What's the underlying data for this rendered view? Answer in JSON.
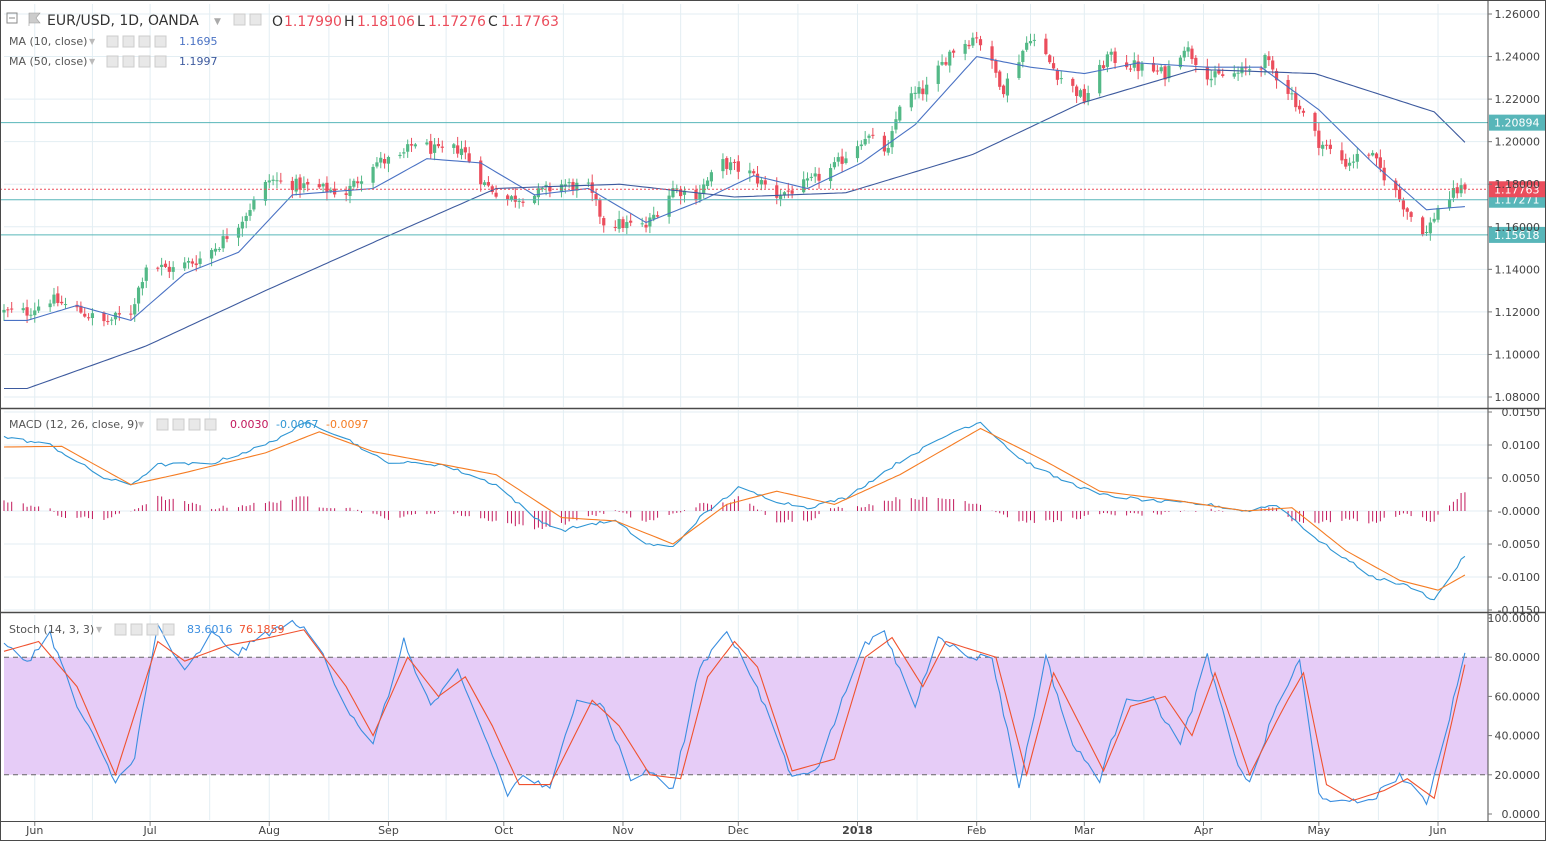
{
  "header": {
    "symbol": "EUR/USD, 1D, OANDA",
    "o_label": "O",
    "o_value": "1.17990",
    "h_label": "H",
    "h_value": "1.18106",
    "l_label": "L",
    "l_value": "1.17276",
    "c_label": "C",
    "c_value": "1.17763"
  },
  "indicators": {
    "ma10": {
      "label": "MA (10, close)",
      "value": "1.1695"
    },
    "ma50": {
      "label": "MA (50, close)",
      "value": "1.1997"
    },
    "macd": {
      "label": "MACD (12, 26, close, 9)",
      "hist": "0.0030",
      "macd": "-0.0067",
      "signal": "-0.0097"
    },
    "stoch": {
      "label": "Stoch (14, 3, 3)",
      "k": "83.6016",
      "d": "76.1859"
    }
  },
  "colors": {
    "bull": "#53b987",
    "bear": "#eb4d5c",
    "ma10": "#4a72c4",
    "ma50": "#3d5a9e",
    "hline": "#58b6b9",
    "macd_line": "#2f96d4",
    "signal_line": "#f57c23",
    "hist": "#c2185b",
    "stoch_k": "#3b8ee0",
    "stoch_d": "#f0522f",
    "stoch_band": "#e6ccf7"
  },
  "chart_data": {
    "type": "candlestick",
    "price": {
      "ylim": [
        1.07,
        1.262
      ],
      "ticks": [
        "1.26000",
        "1.24000",
        "1.22000",
        "1.20000",
        "1.18000",
        "1.16000",
        "1.14000",
        "1.12000",
        "1.10000",
        "1.08000"
      ],
      "hlines": [
        1.20894,
        1.17271,
        1.15618
      ],
      "hline_labels": [
        "1.20894",
        "1.17271",
        "1.15618"
      ],
      "last_price": 1.17763,
      "last_label": "1.17763",
      "anchors": [
        [
          "2017-05-30",
          1.12
        ],
        [
          "2017-06-05",
          1.126
        ],
        [
          "2017-06-12",
          1.121
        ],
        [
          "2017-06-19",
          1.115
        ],
        [
          "2017-06-26",
          1.12
        ],
        [
          "2017-06-30",
          1.142
        ],
        [
          "2017-07-07",
          1.14
        ],
        [
          "2017-07-14",
          1.145
        ],
        [
          "2017-07-19",
          1.152
        ],
        [
          "2017-07-25",
          1.164
        ],
        [
          "2017-08-01",
          1.182
        ],
        [
          "2017-08-07",
          1.18
        ],
        [
          "2017-08-14",
          1.178
        ],
        [
          "2017-08-21",
          1.176
        ],
        [
          "2017-08-28",
          1.19
        ],
        [
          "2017-09-04",
          1.192
        ],
        [
          "2017-09-08",
          1.2
        ],
        [
          "2017-09-14",
          1.195
        ],
        [
          "2017-09-20",
          1.197
        ],
        [
          "2017-09-26",
          1.18
        ],
        [
          "2017-10-02",
          1.173
        ],
        [
          "2017-10-09",
          1.175
        ],
        [
          "2017-10-16",
          1.18
        ],
        [
          "2017-10-23",
          1.178
        ],
        [
          "2017-10-27",
          1.162
        ],
        [
          "2017-11-07",
          1.16
        ],
        [
          "2017-11-14",
          1.178
        ],
        [
          "2017-11-20",
          1.175
        ],
        [
          "2017-11-27",
          1.19
        ],
        [
          "2017-12-04",
          1.185
        ],
        [
          "2017-12-11",
          1.175
        ],
        [
          "2017-12-19",
          1.18
        ],
        [
          "2017-12-26",
          1.188
        ],
        [
          "2018-01-03",
          1.203
        ],
        [
          "2018-01-09",
          1.195
        ],
        [
          "2018-01-12",
          1.218
        ],
        [
          "2018-01-19",
          1.225
        ],
        [
          "2018-01-25",
          1.242
        ],
        [
          "2018-02-01",
          1.25
        ],
        [
          "2018-02-08",
          1.225
        ],
        [
          "2018-02-15",
          1.25
        ],
        [
          "2018-02-22",
          1.232
        ],
        [
          "2018-03-01",
          1.22
        ],
        [
          "2018-03-07",
          1.24
        ],
        [
          "2018-03-15",
          1.235
        ],
        [
          "2018-03-22",
          1.232
        ],
        [
          "2018-03-27",
          1.245
        ],
        [
          "2018-04-03",
          1.23
        ],
        [
          "2018-04-10",
          1.232
        ],
        [
          "2018-04-17",
          1.238
        ],
        [
          "2018-04-24",
          1.222
        ],
        [
          "2018-05-01",
          1.2
        ],
        [
          "2018-05-08",
          1.19
        ],
        [
          "2018-05-14",
          1.195
        ],
        [
          "2018-05-21",
          1.176
        ],
        [
          "2018-05-25",
          1.165
        ],
        [
          "2018-05-29",
          1.157
        ],
        [
          "2018-06-01",
          1.169
        ],
        [
          "2018-06-06",
          1.177
        ],
        [
          "2018-06-08",
          1.1776
        ]
      ],
      "ma10_anchors": [
        [
          "2017-05-30",
          1.116
        ],
        [
          "2017-06-12",
          1.123
        ],
        [
          "2017-06-26",
          1.116
        ],
        [
          "2017-07-10",
          1.138
        ],
        [
          "2017-07-24",
          1.148
        ],
        [
          "2017-08-07",
          1.175
        ],
        [
          "2017-08-28",
          1.178
        ],
        [
          "2017-09-11",
          1.192
        ],
        [
          "2017-09-25",
          1.19
        ],
        [
          "2017-10-09",
          1.175
        ],
        [
          "2017-10-23",
          1.178
        ],
        [
          "2017-11-07",
          1.162
        ],
        [
          "2017-11-21",
          1.172
        ],
        [
          "2017-12-05",
          1.184
        ],
        [
          "2017-12-19",
          1.178
        ],
        [
          "2018-01-02",
          1.19
        ],
        [
          "2018-01-16",
          1.208
        ],
        [
          "2018-02-01",
          1.24
        ],
        [
          "2018-02-15",
          1.235
        ],
        [
          "2018-03-01",
          1.232
        ],
        [
          "2018-03-15",
          1.237
        ],
        [
          "2018-04-02",
          1.235
        ],
        [
          "2018-04-16",
          1.235
        ],
        [
          "2018-05-01",
          1.215
        ],
        [
          "2018-05-15",
          1.19
        ],
        [
          "2018-05-29",
          1.168
        ],
        [
          "2018-06-08",
          1.1695
        ]
      ],
      "ma50_anchors": [
        [
          "2017-05-30",
          1.084
        ],
        [
          "2017-06-30",
          1.104
        ],
        [
          "2017-07-31",
          1.13
        ],
        [
          "2017-08-31",
          1.155
        ],
        [
          "2017-09-29",
          1.178
        ],
        [
          "2017-10-31",
          1.18
        ],
        [
          "2017-11-30",
          1.174
        ],
        [
          "2017-12-29",
          1.176
        ],
        [
          "2018-01-31",
          1.194
        ],
        [
          "2018-02-28",
          1.218
        ],
        [
          "2018-03-30",
          1.234
        ],
        [
          "2018-04-30",
          1.232
        ],
        [
          "2018-05-31",
          1.214
        ],
        [
          "2018-06-08",
          1.1997
        ]
      ]
    },
    "x_axis": {
      "labels": [
        "Jun",
        "Jul",
        "Aug",
        "Sep",
        "Oct",
        "Nov",
        "Dec",
        "2018",
        "Feb",
        "Mar",
        "Apr",
        "May",
        "Jun"
      ],
      "dates": [
        "2017-06-01",
        "2017-07-01",
        "2017-08-01",
        "2017-09-01",
        "2017-10-01",
        "2017-11-01",
        "2017-12-01",
        "2018-01-01",
        "2018-02-01",
        "2018-03-01",
        "2018-04-01",
        "2018-05-01",
        "2018-06-01"
      ],
      "range": [
        "2017-05-24",
        "2018-06-14"
      ]
    },
    "macd": {
      "ylim": [
        -0.0155,
        0.0155
      ],
      "ticks": [
        "0.0150",
        "0.0100",
        "0.0050",
        "-0.0000",
        "-0.0050",
        "-0.0100",
        "-0.0150"
      ],
      "macd_anchors": [
        [
          "2017-05-24",
          0.0112
        ],
        [
          "2017-06-05",
          0.01
        ],
        [
          "2017-06-19",
          0.005
        ],
        [
          "2017-06-26",
          0.004
        ],
        [
          "2017-07-03",
          0.007
        ],
        [
          "2017-07-17",
          0.0072
        ],
        [
          "2017-07-31",
          0.01
        ],
        [
          "2017-08-11",
          0.0135
        ],
        [
          "2017-08-21",
          0.011
        ],
        [
          "2017-08-31",
          0.0075
        ],
        [
          "2017-09-15",
          0.007
        ],
        [
          "2017-09-29",
          0.004
        ],
        [
          "2017-10-09",
          -0.001
        ],
        [
          "2017-10-16",
          -0.003
        ],
        [
          "2017-10-23",
          -0.002
        ],
        [
          "2017-10-30",
          -0.0015
        ],
        [
          "2017-11-07",
          -0.005
        ],
        [
          "2017-11-14",
          -0.0055
        ],
        [
          "2017-11-21",
          -0.001
        ],
        [
          "2017-12-01",
          0.0035
        ],
        [
          "2017-12-11",
          0.0015
        ],
        [
          "2017-12-19",
          0.0005
        ],
        [
          "2017-12-29",
          0.002
        ],
        [
          "2018-01-12",
          0.0075
        ],
        [
          "2018-01-26",
          0.012
        ],
        [
          "2018-02-02",
          0.0135
        ],
        [
          "2018-02-12",
          0.008
        ],
        [
          "2018-02-22",
          0.005
        ],
        [
          "2018-03-05",
          0.0025
        ],
        [
          "2018-03-19",
          0.0015
        ],
        [
          "2018-04-02",
          0.001
        ],
        [
          "2018-04-12",
          0.0
        ],
        [
          "2018-04-20",
          0.001
        ],
        [
          "2018-05-01",
          -0.0045
        ],
        [
          "2018-05-15",
          -0.01
        ],
        [
          "2018-05-25",
          -0.0115
        ],
        [
          "2018-05-31",
          -0.0135
        ],
        [
          "2018-06-08",
          -0.0067
        ]
      ],
      "signal_anchors": [
        [
          "2017-05-24",
          0.0097
        ],
        [
          "2017-06-08",
          0.0098
        ],
        [
          "2017-06-26",
          0.004
        ],
        [
          "2017-07-10",
          0.0058
        ],
        [
          "2017-07-31",
          0.0088
        ],
        [
          "2017-08-14",
          0.012
        ],
        [
          "2017-08-28",
          0.009
        ],
        [
          "2017-09-11",
          0.0075
        ],
        [
          "2017-09-29",
          0.0055
        ],
        [
          "2017-10-16",
          -0.001
        ],
        [
          "2017-10-30",
          -0.0015
        ],
        [
          "2017-11-14",
          -0.005
        ],
        [
          "2017-11-28",
          0.001
        ],
        [
          "2017-12-11",
          0.003
        ],
        [
          "2017-12-26",
          0.001
        ],
        [
          "2018-01-12",
          0.0055
        ],
        [
          "2018-02-02",
          0.0125
        ],
        [
          "2018-02-19",
          0.0075
        ],
        [
          "2018-03-05",
          0.003
        ],
        [
          "2018-03-26",
          0.0015
        ],
        [
          "2018-04-12",
          0.0
        ],
        [
          "2018-04-24",
          0.0005
        ],
        [
          "2018-05-08",
          -0.006
        ],
        [
          "2018-05-22",
          -0.0105
        ],
        [
          "2018-06-01",
          -0.012
        ],
        [
          "2018-06-08",
          -0.0097
        ]
      ],
      "last_labels": {
        "hist": "0.0030",
        "macd": "-0.0067",
        "signal": "-0.0097"
      }
    },
    "stoch": {
      "ylim": [
        0,
        100
      ],
      "ticks": [
        "100.0000",
        "80.0000",
        "60.0000",
        "40.0000",
        "20.0000",
        "0.0000"
      ],
      "band": [
        20,
        80
      ],
      "k_anchors": [
        [
          "2017-05-24",
          86
        ],
        [
          "2017-05-30",
          78
        ],
        [
          "2017-06-05",
          92
        ],
        [
          "2017-06-12",
          55
        ],
        [
          "2017-06-16",
          40
        ],
        [
          "2017-06-22",
          16
        ],
        [
          "2017-06-27",
          30
        ],
        [
          "2017-07-03",
          96
        ],
        [
          "2017-07-10",
          72
        ],
        [
          "2017-07-17",
          92
        ],
        [
          "2017-07-24",
          82
        ],
        [
          "2017-07-31",
          92
        ],
        [
          "2017-08-08",
          98
        ],
        [
          "2017-08-14",
          85
        ],
        [
          "2017-08-21",
          55
        ],
        [
          "2017-08-28",
          35
        ],
        [
          "2017-09-05",
          88
        ],
        [
          "2017-09-12",
          55
        ],
        [
          "2017-09-19",
          72
        ],
        [
          "2017-09-26",
          40
        ],
        [
          "2017-10-02",
          10
        ],
        [
          "2017-10-06",
          20
        ],
        [
          "2017-10-13",
          12
        ],
        [
          "2017-10-20",
          60
        ],
        [
          "2017-10-27",
          55
        ],
        [
          "2017-11-03",
          18
        ],
        [
          "2017-11-08",
          22
        ],
        [
          "2017-11-14",
          12
        ],
        [
          "2017-11-21",
          75
        ],
        [
          "2017-11-28",
          94
        ],
        [
          "2017-12-04",
          72
        ],
        [
          "2017-12-11",
          40
        ],
        [
          "2017-12-15",
          18
        ],
        [
          "2017-12-22",
          25
        ],
        [
          "2018-01-02",
          85
        ],
        [
          "2018-01-08",
          92
        ],
        [
          "2018-01-16",
          55
        ],
        [
          "2018-01-22",
          92
        ],
        [
          "2018-01-29",
          80
        ],
        [
          "2018-02-05",
          80
        ],
        [
          "2018-02-12",
          14
        ],
        [
          "2018-02-19",
          80
        ],
        [
          "2018-02-26",
          35
        ],
        [
          "2018-03-05",
          18
        ],
        [
          "2018-03-12",
          60
        ],
        [
          "2018-03-19",
          58
        ],
        [
          "2018-03-26",
          35
        ],
        [
          "2018-04-02",
          80
        ],
        [
          "2018-04-09",
          30
        ],
        [
          "2018-04-13",
          15
        ],
        [
          "2018-04-20",
          55
        ],
        [
          "2018-04-26",
          78
        ],
        [
          "2018-05-01",
          10
        ],
        [
          "2018-05-08",
          5
        ],
        [
          "2018-05-15",
          8
        ],
        [
          "2018-05-22",
          20
        ],
        [
          "2018-05-29",
          5
        ],
        [
          "2018-06-04",
          50
        ],
        [
          "2018-06-08",
          83.6
        ]
      ],
      "d_anchors": [
        [
          "2017-05-24",
          83
        ],
        [
          "2017-06-02",
          88
        ],
        [
          "2017-06-12",
          65
        ],
        [
          "2017-06-22",
          20
        ],
        [
          "2017-07-03",
          88
        ],
        [
          "2017-07-10",
          78
        ],
        [
          "2017-07-21",
          86
        ],
        [
          "2017-08-01",
          90
        ],
        [
          "2017-08-10",
          94
        ],
        [
          "2017-08-21",
          65
        ],
        [
          "2017-08-28",
          40
        ],
        [
          "2017-09-06",
          80
        ],
        [
          "2017-09-14",
          60
        ],
        [
          "2017-09-21",
          70
        ],
        [
          "2017-09-28",
          45
        ],
        [
          "2017-10-05",
          15
        ],
        [
          "2017-10-13",
          15
        ],
        [
          "2017-10-24",
          58
        ],
        [
          "2017-10-31",
          45
        ],
        [
          "2017-11-08",
          20
        ],
        [
          "2017-11-16",
          18
        ],
        [
          "2017-11-23",
          70
        ],
        [
          "2017-11-30",
          88
        ],
        [
          "2017-12-06",
          75
        ],
        [
          "2017-12-15",
          22
        ],
        [
          "2017-12-26",
          28
        ],
        [
          "2018-01-03",
          80
        ],
        [
          "2018-01-10",
          90
        ],
        [
          "2018-01-18",
          65
        ],
        [
          "2018-01-24",
          88
        ],
        [
          "2018-02-06",
          80
        ],
        [
          "2018-02-14",
          20
        ],
        [
          "2018-02-21",
          72
        ],
        [
          "2018-03-06",
          22
        ],
        [
          "2018-03-13",
          55
        ],
        [
          "2018-03-22",
          60
        ],
        [
          "2018-03-29",
          40
        ],
        [
          "2018-04-04",
          72
        ],
        [
          "2018-04-13",
          20
        ],
        [
          "2018-04-22",
          55
        ],
        [
          "2018-04-27",
          72
        ],
        [
          "2018-05-03",
          15
        ],
        [
          "2018-05-10",
          7
        ],
        [
          "2018-05-18",
          12
        ],
        [
          "2018-05-24",
          18
        ],
        [
          "2018-05-31",
          8
        ],
        [
          "2018-06-08",
          76.2
        ]
      ],
      "last_labels": {
        "k": "83.6016",
        "d": "76.1859"
      }
    }
  }
}
